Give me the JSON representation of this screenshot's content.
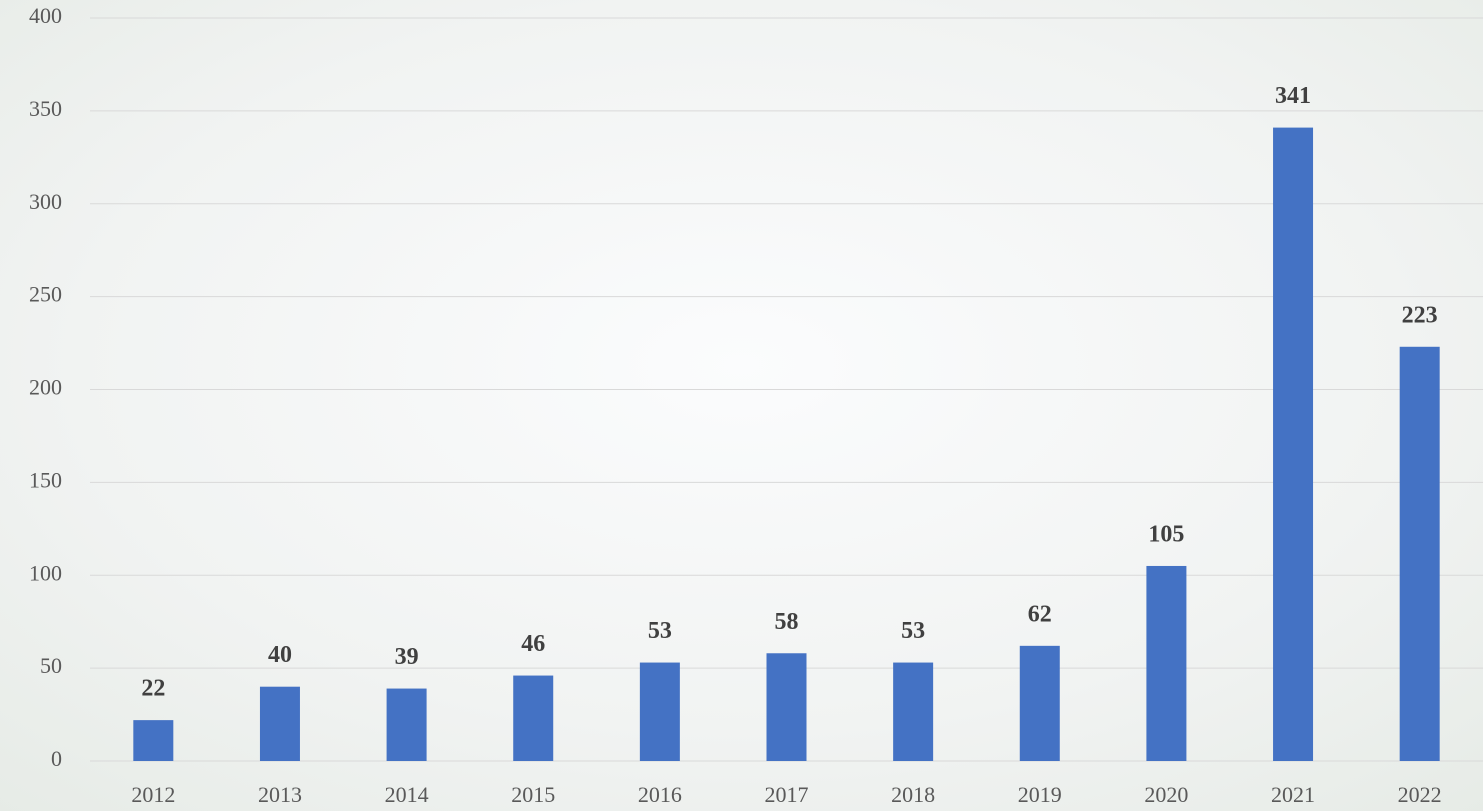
{
  "chart_data": {
    "type": "bar",
    "categories": [
      "2012",
      "2013",
      "2014",
      "2015",
      "2016",
      "2017",
      "2018",
      "2019",
      "2020",
      "2021",
      "2022"
    ],
    "values": [
      22,
      40,
      39,
      46,
      53,
      58,
      53,
      62,
      105,
      341,
      223
    ],
    "color": "#4472c4",
    "ylim": [
      0,
      400
    ],
    "yticks": [
      0,
      50,
      100,
      150,
      200,
      250,
      300,
      350,
      400
    ],
    "grid": true
  }
}
